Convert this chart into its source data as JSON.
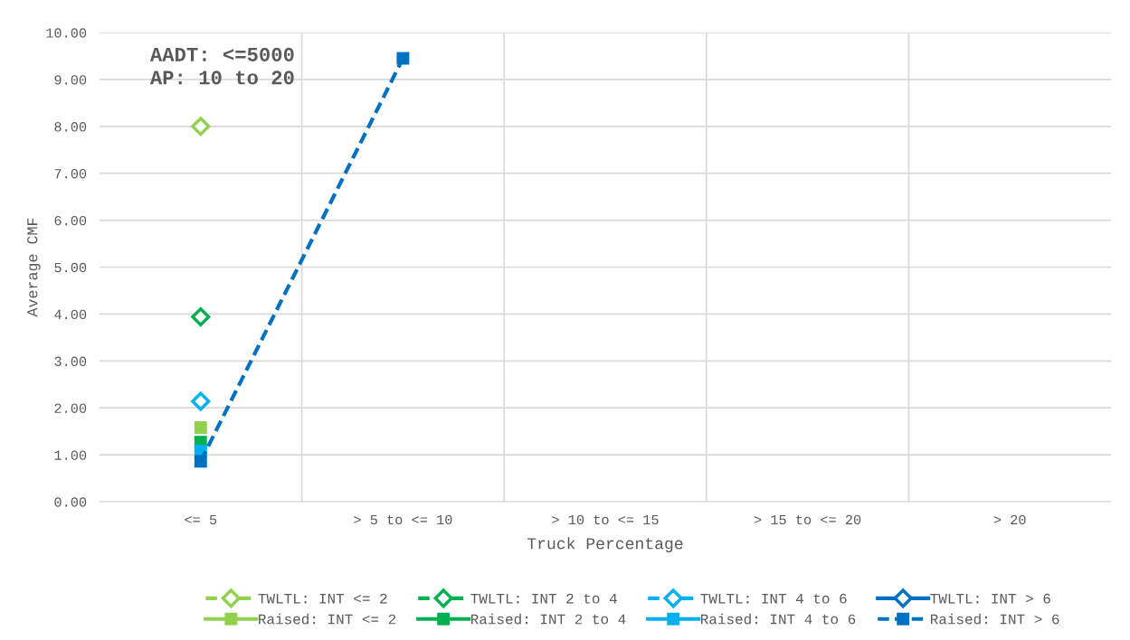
{
  "chart_data": {
    "type": "line",
    "xlabel": "Truck Percentage",
    "ylabel": "Average CMF",
    "categories": [
      "<= 5",
      "> 5 to <= 10",
      "> 10 to <= 15",
      "> 15 to <= 20",
      "> 20"
    ],
    "ylim": [
      0,
      10
    ],
    "yticks": [
      {
        "value": 0,
        "label": "0.00"
      },
      {
        "value": 1,
        "label": "1.00"
      },
      {
        "value": 2,
        "label": "2.00"
      },
      {
        "value": 3,
        "label": "3.00"
      },
      {
        "value": 4,
        "label": "4.00"
      },
      {
        "value": 5,
        "label": "5.00"
      },
      {
        "value": 6,
        "label": "6.00"
      },
      {
        "value": 7,
        "label": "7.00"
      },
      {
        "value": 8,
        "label": "8.00"
      },
      {
        "value": 9,
        "label": "9.00"
      },
      {
        "value": 10,
        "label": "10.00"
      }
    ],
    "grid": true,
    "legend": "bottom",
    "annotations": [
      "AADT: <=5000\nAP: 10 to 20"
    ],
    "series": [
      {
        "name": "TWLTL: INT <= 2",
        "color": "#92d050",
        "marker": "diamond",
        "line_style": "dashed",
        "values": [
          8.0,
          null,
          null,
          null,
          null
        ]
      },
      {
        "name": "TWLTL: INT 2 to 4",
        "color": "#00b050",
        "marker": "diamond",
        "line_style": "dashed",
        "values": [
          3.94,
          null,
          null,
          null,
          null
        ]
      },
      {
        "name": "TWLTL: INT 4 to 6",
        "color": "#00b0f0",
        "marker": "diamond",
        "line_style": "dashed",
        "values": [
          2.14,
          null,
          null,
          null,
          null
        ]
      },
      {
        "name": "TWLTL: INT > 6",
        "color": "#0070c0",
        "marker": "diamond",
        "line_style": "solid",
        "values": [
          null,
          null,
          null,
          null,
          null
        ]
      },
      {
        "name": "Raised: INT <= 2",
        "color": "#92d050",
        "marker": "square",
        "line_style": "solid",
        "values": [
          1.58,
          null,
          null,
          null,
          null
        ]
      },
      {
        "name": "Raised: INT 2 to 4",
        "color": "#00b050",
        "marker": "square",
        "line_style": "solid",
        "values": [
          1.27,
          null,
          null,
          null,
          null
        ]
      },
      {
        "name": "Raised: INT 4 to 6",
        "color": "#00b0f0",
        "marker": "square",
        "line_style": "solid",
        "values": [
          1.08,
          null,
          null,
          null,
          null
        ]
      },
      {
        "name": "Raised: INT > 6",
        "color": "#0070c0",
        "marker": "square",
        "line_style": "dashed",
        "values": [
          0.86,
          9.45,
          null,
          null,
          null
        ]
      }
    ]
  }
}
